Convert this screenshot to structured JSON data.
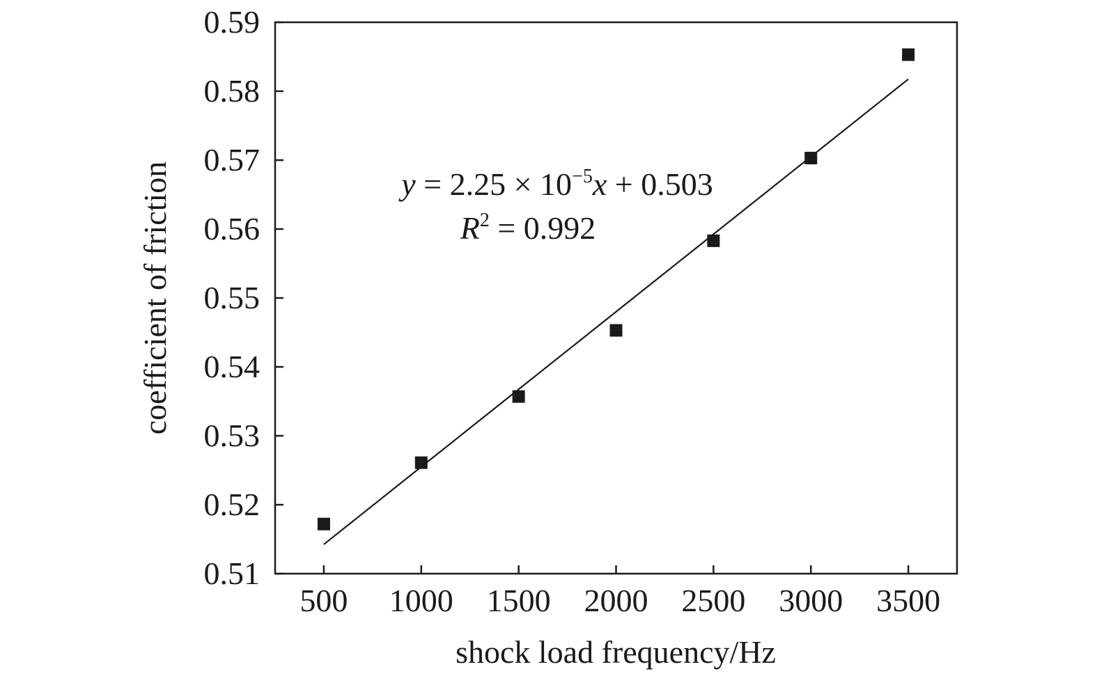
{
  "chart_data": {
    "type": "scatter",
    "xlabel": "shock load frequency/Hz",
    "ylabel": "coefficient of friction",
    "xlim": [
      250,
      3750
    ],
    "ylim": [
      0.51,
      0.59
    ],
    "x_ticks": [
      "500",
      "1000",
      "1500",
      "2000",
      "2500",
      "3000",
      "3500"
    ],
    "y_ticks": [
      "0.51",
      "0.52",
      "0.53",
      "0.54",
      "0.55",
      "0.56",
      "0.57",
      "0.58",
      "0.59"
    ],
    "x_tick_values": [
      500,
      1000,
      1500,
      2000,
      2500,
      3000,
      3500
    ],
    "y_tick_values": [
      0.51,
      0.52,
      0.53,
      0.54,
      0.55,
      0.56,
      0.57,
      0.58,
      0.59
    ],
    "points": {
      "x": [
        500,
        1000,
        1500,
        2000,
        2500,
        3000,
        3500
      ],
      "y": [
        0.5172,
        0.5261,
        0.5357,
        0.5453,
        0.5583,
        0.5703,
        0.5853
      ]
    },
    "fit_line": {
      "slope": 2.25e-05,
      "intercept": 0.503,
      "x_range": [
        500,
        3500
      ]
    },
    "annotation": {
      "y_var": "y",
      "eq_mid": " = 2.25 × 10",
      "eq_exp": "−5",
      "x_var": "x",
      "eq_tail": " + 0.503",
      "r_var": "R",
      "r_exp": "2",
      "r_tail": " = 0.992"
    },
    "grid": false,
    "legend": "none",
    "colors": {
      "marker": "#1a1a1a",
      "line": "#1a1a1a",
      "axis": "#1a1a1a"
    }
  }
}
